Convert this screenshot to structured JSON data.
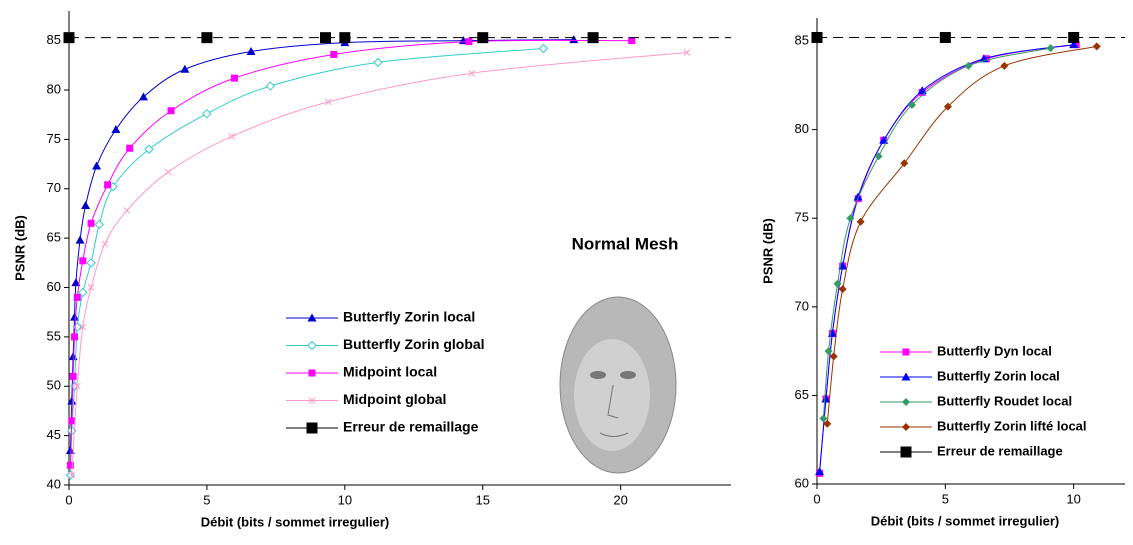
{
  "chart_data": [
    {
      "type": "line",
      "xlabel": "Débit (bits / sommet irregulier)",
      "ylabel": "PSNR (dB)",
      "annotation": "Normal Mesh",
      "xlim": [
        0,
        24
      ],
      "ylim": [
        40,
        88
      ],
      "xticks": [
        0,
        5,
        10,
        15,
        20
      ],
      "yticks": [
        40,
        45,
        50,
        55,
        60,
        65,
        70,
        75,
        80,
        85
      ],
      "legend": "lower right",
      "series": [
        {
          "name": "Butterfly Zorin local",
          "color": "#0000cc",
          "marker": "triangle",
          "x": [
            0.05,
            0.1,
            0.15,
            0.2,
            0.25,
            0.4,
            0.6,
            1.0,
            1.7,
            2.7,
            4.2,
            6.6,
            10,
            14.3,
            18.3
          ],
          "values": [
            43.5,
            48.5,
            53,
            57,
            60.5,
            64.8,
            68.3,
            72.3,
            76,
            79.3,
            82.1,
            83.9,
            84.8,
            85,
            85.1
          ]
        },
        {
          "name": "Butterfly Zorin global",
          "color": "#33cccc",
          "marker": "open-diamond",
          "x": [
            0.05,
            0.1,
            0.2,
            0.3,
            0.5,
            0.8,
            1.1,
            1.6,
            2.9,
            5,
            7.3,
            11.2,
            17.2
          ],
          "values": [
            41,
            45.5,
            50,
            56,
            59.5,
            62.5,
            66.4,
            70.2,
            74,
            77.6,
            80.4,
            82.8,
            84.2
          ]
        },
        {
          "name": "Midpoint local",
          "color": "#ff00ff",
          "marker": "square",
          "x": [
            0.05,
            0.1,
            0.15,
            0.2,
            0.3,
            0.5,
            0.8,
            1.4,
            2.2,
            3.7,
            6,
            9.6,
            14.5,
            20.4
          ],
          "values": [
            42,
            46.5,
            51,
            55,
            59,
            62.7,
            66.5,
            70.4,
            74.1,
            77.9,
            81.2,
            83.6,
            84.9,
            85
          ]
        },
        {
          "name": "Midpoint global",
          "color": "#ff99cc",
          "marker": "cross",
          "x": [
            0.1,
            0.3,
            0.5,
            0.8,
            1.3,
            2.1,
            3.6,
            5.9,
            9.4,
            14.6,
            22.4
          ],
          "values": [
            41,
            50,
            56,
            60,
            64.4,
            67.8,
            71.7,
            75.3,
            78.8,
            81.7,
            83.8
          ]
        },
        {
          "name": "Erreur de remaillage",
          "color": "#000000",
          "marker": "big-square",
          "dashed": true,
          "x": [
            0,
            5,
            9.3,
            10,
            15,
            19
          ],
          "values": [
            85.3,
            85.3,
            85.3,
            85.3,
            85.3,
            85.3
          ]
        }
      ]
    },
    {
      "type": "line",
      "xlabel": "Débit (bits / sommet irregulier)",
      "ylabel": "PSNR (dB)",
      "xlim": [
        0,
        12
      ],
      "ylim": [
        60,
        86.3
      ],
      "xticks": [
        0,
        5,
        10
      ],
      "yticks": [
        60,
        65,
        70,
        75,
        80,
        85
      ],
      "legend": "lower right",
      "series": [
        {
          "name": "Butterfly Dyn local",
          "color": "#ff00ff",
          "marker": "square",
          "x": [
            0.1,
            0.35,
            0.6,
            1.0,
            1.6,
            2.6,
            4.1,
            6.6,
            10.1
          ],
          "values": [
            60.6,
            64.8,
            68.5,
            72.3,
            76.1,
            79.4,
            82.1,
            84,
            84.8
          ]
        },
        {
          "name": "Butterfly Zorin local",
          "color": "#0000ff",
          "marker": "triangle",
          "x": [
            0.1,
            0.35,
            0.6,
            1.0,
            1.6,
            2.6,
            4.1,
            6.5,
            10
          ],
          "values": [
            60.7,
            64.8,
            68.5,
            72.3,
            76.2,
            79.4,
            82.2,
            84,
            84.8
          ]
        },
        {
          "name": "Butterfly Roudet local",
          "color": "#339966",
          "marker": "diamond",
          "x": [
            0.25,
            0.45,
            0.8,
            1.3,
            2.4,
            3.7,
            5.9,
            9.1
          ],
          "values": [
            63.7,
            67.5,
            71.3,
            75,
            78.5,
            81.4,
            83.6,
            84.6
          ]
        },
        {
          "name": "Butterfly Zorin lifté local",
          "color": "#993300",
          "marker": "diamond",
          "x": [
            0.4,
            0.65,
            1.0,
            1.7,
            3.4,
            5.1,
            7.3,
            10.9
          ],
          "values": [
            63.4,
            67.2,
            71,
            74.8,
            78.1,
            81.3,
            83.6,
            84.7
          ]
        },
        {
          "name": "Erreur de remaillage",
          "color": "#000000",
          "marker": "big-square",
          "dashed": true,
          "x": [
            0,
            5,
            10
          ],
          "values": [
            85.2,
            85.2,
            85.2
          ]
        }
      ]
    }
  ]
}
